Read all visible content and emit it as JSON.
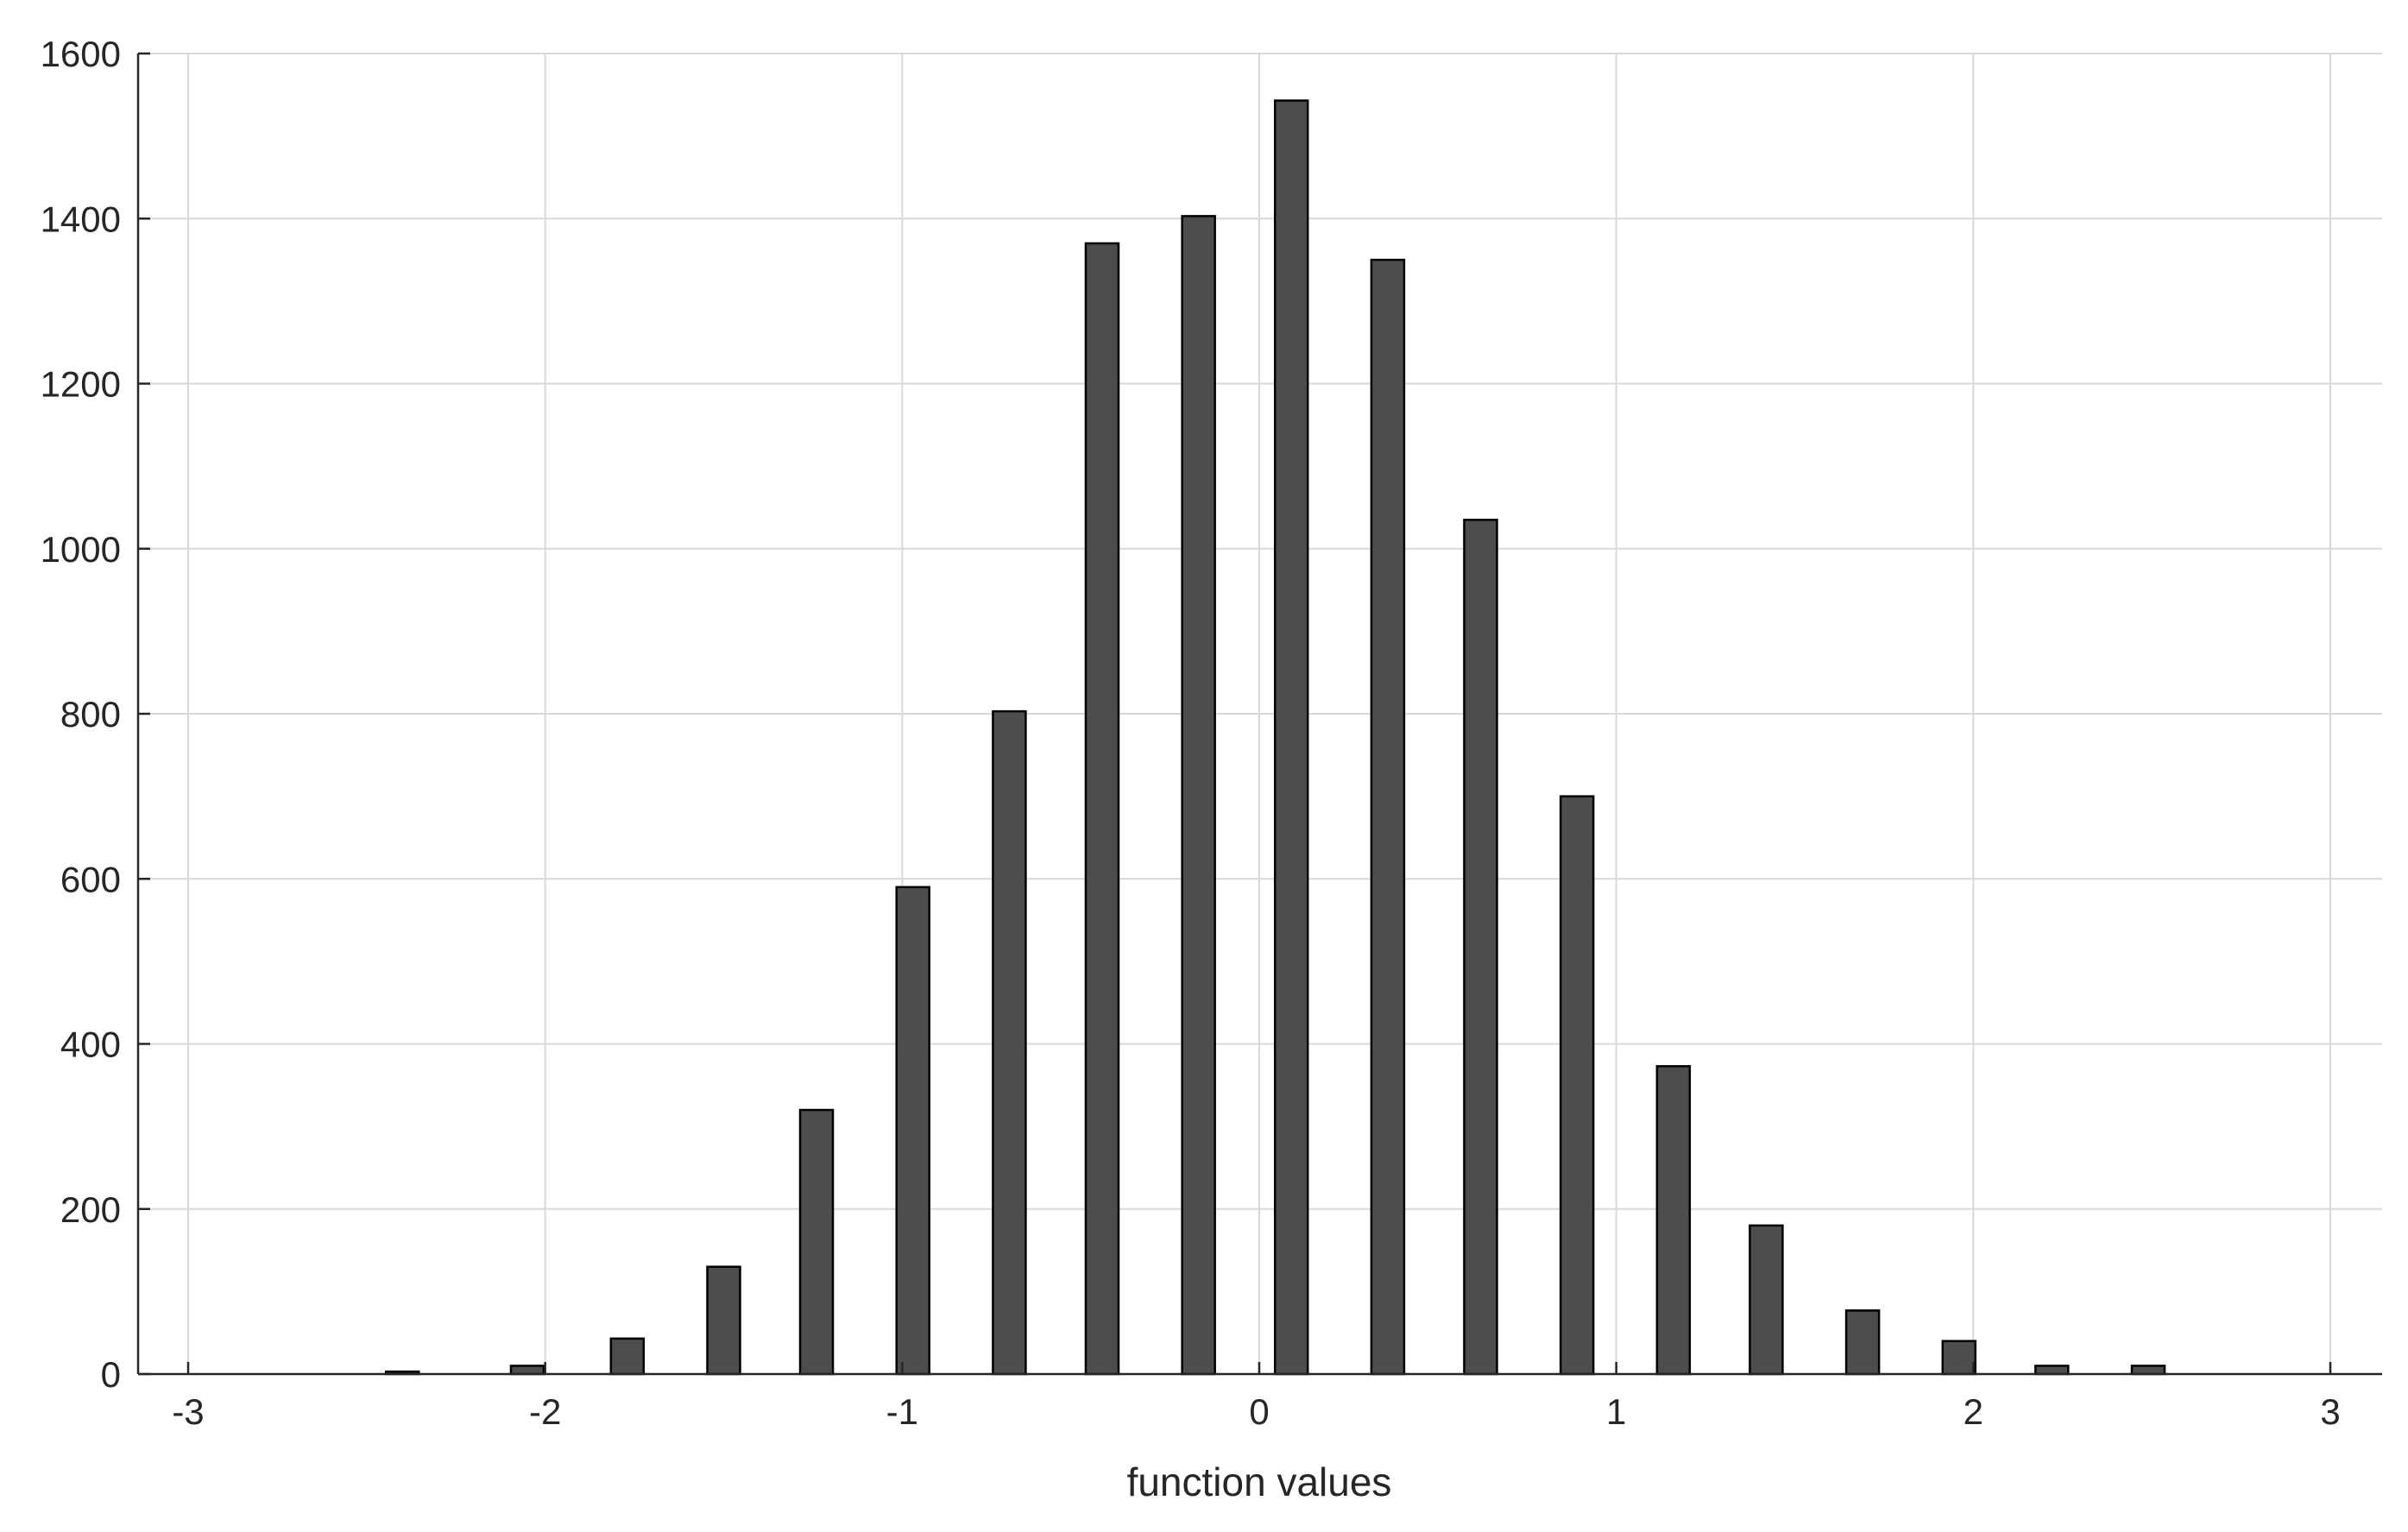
{
  "chart_data": {
    "type": "bar",
    "title": "",
    "xlabel": "function values",
    "ylabel": "",
    "xlim": [
      -3,
      3
    ],
    "ylim": [
      0,
      1600
    ],
    "x_ticks": [
      -3,
      -2,
      -1,
      0,
      1,
      2,
      3
    ],
    "x_tick_labels": [
      "-3",
      "-2",
      "-1",
      "0",
      "1",
      "2",
      "3"
    ],
    "y_ticks": [
      0,
      200,
      400,
      600,
      800,
      1000,
      1200,
      1400,
      1600
    ],
    "y_tick_labels": [
      "0",
      "200",
      "400",
      "600",
      "800",
      "1000",
      "1200",
      "1400",
      "1600"
    ],
    "grid": true,
    "legend": "none",
    "bar_color": "#4d4d4d",
    "bar_edge_color": "#000000",
    "bins": [
      {
        "x": -2.4,
        "value": 3
      },
      {
        "x": -2.05,
        "value": 10
      },
      {
        "x": -1.77,
        "value": 43
      },
      {
        "x": -1.5,
        "value": 130
      },
      {
        "x": -1.24,
        "value": 320
      },
      {
        "x": -0.97,
        "value": 590
      },
      {
        "x": -0.7,
        "value": 803
      },
      {
        "x": -0.44,
        "value": 1370
      },
      {
        "x": -0.17,
        "value": 1403
      },
      {
        "x": 0.09,
        "value": 1543
      },
      {
        "x": 0.36,
        "value": 1350
      },
      {
        "x": 0.62,
        "value": 1035
      },
      {
        "x": 0.89,
        "value": 700
      },
      {
        "x": 1.16,
        "value": 373
      },
      {
        "x": 1.42,
        "value": 180
      },
      {
        "x": 1.69,
        "value": 77
      },
      {
        "x": 1.96,
        "value": 40
      },
      {
        "x": 2.22,
        "value": 10
      },
      {
        "x": 2.49,
        "value": 10
      }
    ]
  }
}
